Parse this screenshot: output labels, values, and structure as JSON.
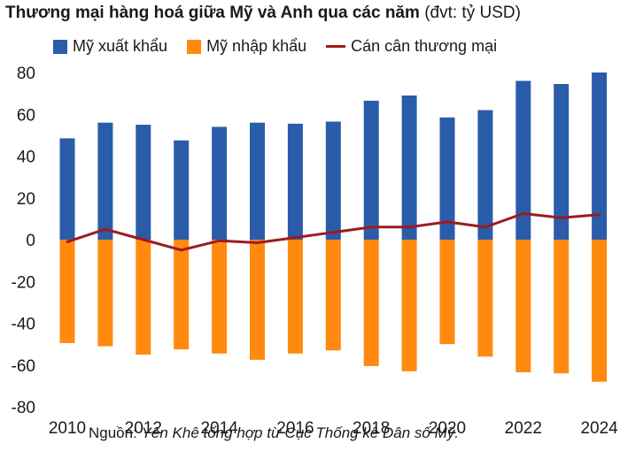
{
  "chart_data": {
    "type": "bar",
    "title": "Thương mại hàng hoá giữa Mỹ và Anh qua các năm",
    "unit_note": "(đvt: tỷ USD)",
    "categories": [
      2010,
      2011,
      2012,
      2013,
      2014,
      2015,
      2016,
      2017,
      2018,
      2019,
      2020,
      2021,
      2022,
      2023,
      2024
    ],
    "x_tick_labels": [
      "2010",
      "2012",
      "2014",
      "2016",
      "2018",
      "2020",
      "2022",
      "2024"
    ],
    "y_tick_labels": [
      "80",
      "60",
      "40",
      "20",
      "0",
      "-20",
      "-40",
      "-60",
      "-80"
    ],
    "ylim": [
      -80,
      80
    ],
    "series": [
      {
        "name": "Mỹ xuất khẩu",
        "type": "bar",
        "color": "#2a5caa",
        "values": [
          48.5,
          56.0,
          55.0,
          47.5,
          54.0,
          56.0,
          55.5,
          56.5,
          66.5,
          69.0,
          58.5,
          62.0,
          76.0,
          74.5,
          80.0
        ]
      },
      {
        "name": "Mỹ nhập khẩu",
        "type": "bar",
        "color": "#ff8a0f",
        "values": [
          -49.5,
          -51.0,
          -55.0,
          -52.5,
          -54.5,
          -57.5,
          -54.5,
          -53.0,
          -60.5,
          -63.0,
          -50.0,
          -56.0,
          -63.5,
          -64.0,
          -68.0
        ]
      },
      {
        "name": "Cán cân thương mại",
        "type": "line",
        "color": "#9e1b1e",
        "values": [
          -1.0,
          5.0,
          0.0,
          -5.0,
          -0.5,
          -1.5,
          1.0,
          3.5,
          6.0,
          6.0,
          8.5,
          6.0,
          12.5,
          10.5,
          12.0
        ]
      }
    ]
  },
  "source": {
    "label": "Nguồn:",
    "text": "Yên Khê tổng hợp từ Cục Thống kê Dân số Mỹ."
  }
}
